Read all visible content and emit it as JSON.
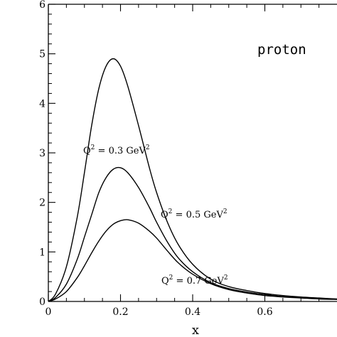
{
  "chart_data": {
    "type": "line",
    "title": "",
    "xlabel": "x",
    "ylabel": "",
    "xlim": [
      0,
      0.8
    ],
    "ylim": [
      0,
      6
    ],
    "x_ticks": [
      {
        "value": 0,
        "label": "0"
      },
      {
        "value": 0.2,
        "label": "0.2"
      },
      {
        "value": 0.4,
        "label": "0.4"
      },
      {
        "value": 0.6,
        "label": "0.6"
      }
    ],
    "y_ticks": [
      {
        "value": 0,
        "label": "0"
      },
      {
        "value": 1,
        "label": "1"
      },
      {
        "value": 2,
        "label": "2"
      },
      {
        "value": 3,
        "label": "3"
      },
      {
        "value": 4,
        "label": "4"
      },
      {
        "value": 5,
        "label": "5"
      },
      {
        "value": 6,
        "label": "6"
      }
    ],
    "grid": false,
    "legend": "none",
    "series": [
      {
        "x": [
          0,
          0.02,
          0.05,
          0.08,
          0.1,
          0.12,
          0.14,
          0.16,
          0.18,
          0.2,
          0.22,
          0.25,
          0.28,
          0.3,
          0.33,
          0.36,
          0.4,
          0.45,
          0.5,
          0.55,
          0.6,
          0.65,
          0.7,
          0.75,
          0.8
        ],
        "y": [
          0,
          0.15,
          0.7,
          1.7,
          2.6,
          3.55,
          4.3,
          4.75,
          4.9,
          4.75,
          4.35,
          3.55,
          2.7,
          2.2,
          1.6,
          1.15,
          0.75,
          0.45,
          0.3,
          0.22,
          0.16,
          0.12,
          0.09,
          0.07,
          0.05
        ]
      },
      {
        "x": [
          0,
          0.02,
          0.05,
          0.08,
          0.1,
          0.12,
          0.14,
          0.16,
          0.18,
          0.2,
          0.22,
          0.25,
          0.28,
          0.3,
          0.33,
          0.36,
          0.4,
          0.45,
          0.5,
          0.55,
          0.6,
          0.65,
          0.7,
          0.75,
          0.8
        ],
        "y": [
          0,
          0.08,
          0.35,
          0.85,
          1.3,
          1.75,
          2.2,
          2.5,
          2.67,
          2.7,
          2.6,
          2.3,
          1.9,
          1.6,
          1.2,
          0.88,
          0.6,
          0.38,
          0.26,
          0.19,
          0.14,
          0.1,
          0.08,
          0.06,
          0.05
        ]
      },
      {
        "x": [
          0,
          0.02,
          0.05,
          0.08,
          0.1,
          0.12,
          0.14,
          0.16,
          0.18,
          0.2,
          0.22,
          0.25,
          0.28,
          0.3,
          0.33,
          0.36,
          0.4,
          0.45,
          0.5,
          0.55,
          0.6,
          0.65,
          0.7,
          0.75,
          0.8
        ],
        "y": [
          0,
          0.05,
          0.2,
          0.48,
          0.72,
          0.98,
          1.22,
          1.42,
          1.56,
          1.63,
          1.65,
          1.58,
          1.42,
          1.28,
          1.02,
          0.78,
          0.55,
          0.36,
          0.24,
          0.17,
          0.12,
          0.09,
          0.07,
          0.05,
          0.04
        ]
      }
    ],
    "annotations": [
      {
        "base": "Q",
        "sup1": "2",
        "mid": " = 0.3 GeV",
        "sup2": "2"
      },
      {
        "base": "Q",
        "sup1": "2",
        "mid": " = 0.5 GeV",
        "sup2": "2"
      },
      {
        "base": "Q",
        "sup1": "2",
        "mid": " = 0.7 GeV",
        "sup2": "2"
      }
    ],
    "corner_label": "proton"
  }
}
